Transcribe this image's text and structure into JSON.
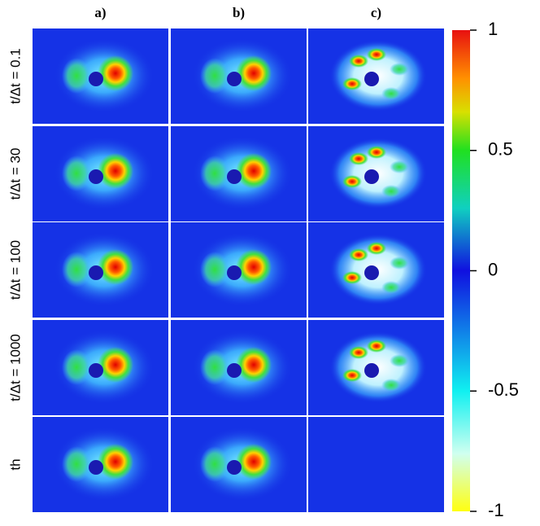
{
  "columns": [
    "a)",
    "b)",
    "c)"
  ],
  "rows": [
    "t/Δt = 0.1",
    "t/Δt = 30",
    "t/Δt = 100",
    "t/Δt = 1000",
    "th"
  ],
  "colorbar": {
    "lim": [
      -1,
      1
    ],
    "ticks": [
      -1,
      -0.5,
      0,
      0.5,
      1
    ]
  }
}
